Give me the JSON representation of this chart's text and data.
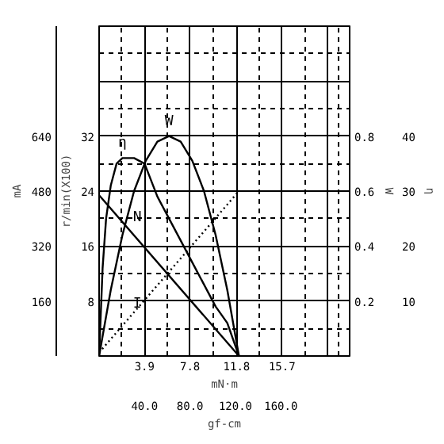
{
  "chart_data": [
    {
      "type": "line",
      "xlabel": "mN·m",
      "x2label": "gf-cm",
      "ylabel": "mA",
      "y2label": "r/min(X100)",
      "y3label": "W",
      "xlim": [
        0,
        21.5
      ],
      "xticks": [
        3.9,
        7.8,
        11.8,
        15.7,
        {
          "value": 19.6,
          "label": null
        }
      ],
      "x2lim": [
        0,
        220.5
      ],
      "x2ticks": [
        {
          "value": 40,
          "label": "40.0"
        },
        {
          "value": 80,
          "label": "80.0"
        },
        {
          "value": 120,
          "label": "120.0"
        },
        {
          "value": 160,
          "label": "160.0"
        }
      ],
      "ylim": [
        0,
        960
      ],
      "yticks": [
        160,
        320,
        480,
        640,
        {
          "value": 800,
          "label": null
        },
        {
          "value": 960,
          "label": null
        }
      ],
      "y2lim": [
        0,
        48
      ],
      "y2ticks": [
        8,
        16,
        24,
        32
      ],
      "y3lim": [
        0,
        1.2
      ],
      "y3ticks": [
        0.2,
        0.4,
        0.6,
        0.8
      ],
      "grid": true,
      "series": [
        {
          "name": "I",
          "color": "#000000",
          "line_style": "dotted",
          "x": [
            0,
            12
          ],
          "values": [
            10,
            480
          ]
        },
        {
          "name": "N",
          "color": "#000000",
          "axis": "y2",
          "line_style": "solid",
          "x": [
            0,
            12
          ],
          "values": [
            23.4,
            0
          ]
        },
        {
          "name": "W",
          "color": "#000000",
          "axis": "y3",
          "line_style": "solid",
          "x": [
            0,
            1,
            2,
            3,
            4,
            5,
            6,
            7,
            8,
            9,
            10,
            11,
            12
          ],
          "values": [
            0,
            0.24,
            0.44,
            0.6,
            0.71,
            0.78,
            0.8,
            0.78,
            0.71,
            0.6,
            0.44,
            0.24,
            0
          ]
        }
      ]
    },
    {
      "type": "line",
      "ylabel": "η",
      "xlim": [
        0,
        21.5
      ],
      "ylim": [
        0,
        60
      ],
      "yticks": [
        10,
        20,
        30,
        40
      ],
      "tick_labels": "y",
      "series": [
        {
          "name": "η",
          "color": "#000000",
          "line_style": "solid",
          "x": [
            0,
            0.3,
            0.6,
            1,
            1.5,
            2,
            3,
            3.9,
            5,
            6,
            8,
            10,
            11,
            12
          ],
          "values": [
            0,
            16,
            25,
            31,
            35,
            36,
            36,
            35,
            29,
            25,
            17,
            9,
            6,
            0
          ]
        }
      ]
    }
  ]
}
